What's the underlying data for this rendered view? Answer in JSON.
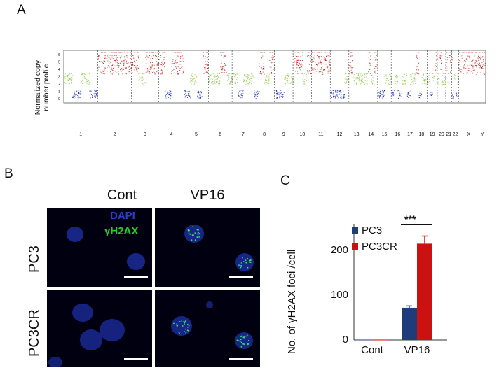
{
  "panels": {
    "a": "A",
    "b": "B",
    "c": "C"
  },
  "cnv": {
    "ylabel_line1": "Normalized copy",
    "ylabel_line2": "number profile",
    "yticks": [
      "0",
      "1",
      "2",
      "3",
      "4",
      "5",
      "6"
    ],
    "chromosomes": [
      "1",
      "2",
      "3",
      "4",
      "5",
      "6",
      "7",
      "8",
      "9",
      "10",
      "11",
      "12",
      "13",
      "14",
      "15",
      "16",
      "17",
      "18",
      "19",
      "20",
      "21",
      "22",
      "X",
      "Y"
    ],
    "colors": {
      "gain": "#cc1010",
      "neutral": "#8cc63f",
      "loss": "#1a2fbf"
    }
  },
  "micro": {
    "columns": [
      "Cont",
      "VP16"
    ],
    "rows": [
      "PC3",
      "PC3CR"
    ],
    "stain1": "DAPI",
    "stain2": "γH2AX",
    "stain1_color": "#2a40c8",
    "stain2_color": "#22d022"
  },
  "chart_data": {
    "type": "bar",
    "ylabel": "No. of γH2AX foci /cell",
    "categories": [
      "Cont",
      "VP16"
    ],
    "series": [
      {
        "name": "PC3",
        "values": [
          0,
          72
        ],
        "errors": [
          0,
          4
        ],
        "color": "#1f3c7a"
      },
      {
        "name": "PC3CR",
        "values": [
          0,
          215
        ],
        "errors": [
          0,
          17
        ],
        "color": "#cc1111"
      }
    ],
    "ylim": [
      0,
      250
    ],
    "yticks": [
      "0",
      "100",
      "200"
    ],
    "significance": "***",
    "legend": "top-left"
  }
}
